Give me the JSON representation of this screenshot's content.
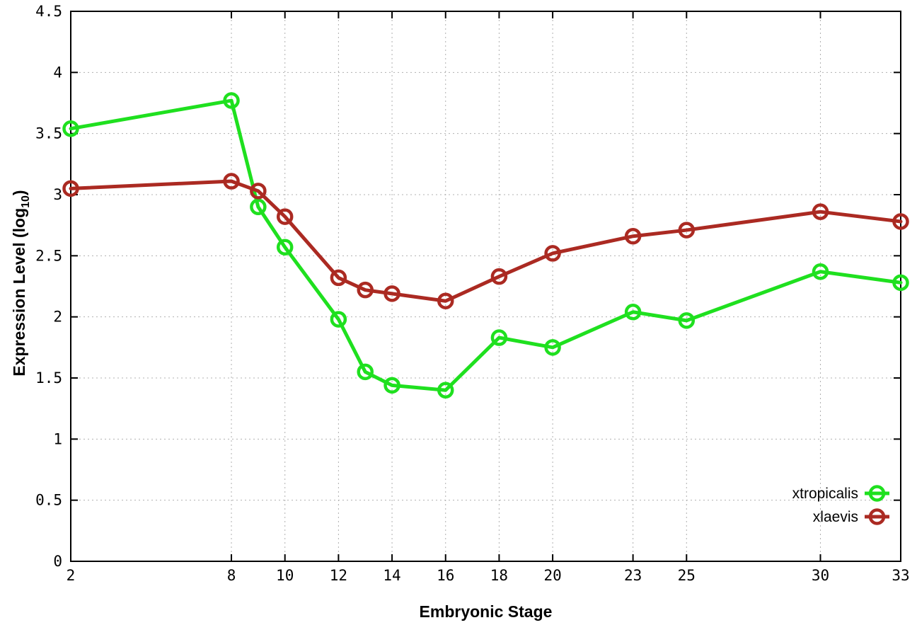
{
  "figure": {
    "background": "#ffffff",
    "text_color": "#000000",
    "grid_color": "#b0b0b0"
  },
  "chart_data": {
    "type": "line",
    "title": "",
    "xlabel": "Embryonic Stage",
    "ylabel": "Expression Level (log10)",
    "ylabel_parts": {
      "main": "Expression Level (log",
      "sub": "10",
      "end": ")"
    },
    "x": [
      2,
      8,
      9,
      10,
      12,
      13,
      14,
      16,
      18,
      20,
      23,
      25,
      30,
      33
    ],
    "series": [
      {
        "name": "xtropicalis",
        "color": "#1fe01f",
        "values": [
          3.54,
          3.77,
          2.9,
          2.57,
          1.98,
          1.55,
          1.44,
          1.4,
          1.83,
          1.75,
          2.04,
          1.97,
          2.37,
          2.28
        ]
      },
      {
        "name": "xlaevis",
        "color": "#ab2a22",
        "values": [
          3.05,
          3.11,
          3.03,
          2.82,
          2.32,
          2.22,
          2.19,
          2.13,
          2.33,
          2.52,
          2.66,
          2.71,
          2.86,
          2.78
        ]
      }
    ],
    "xlim": [
      2,
      33
    ],
    "ylim": [
      0,
      4.5
    ],
    "xticks": [
      2,
      8,
      10,
      12,
      14,
      16,
      18,
      20,
      23,
      25,
      30,
      33
    ],
    "xtick_labels": [
      "2",
      "8",
      "10",
      "12",
      "14",
      "16",
      "18",
      "20",
      "23",
      "25",
      "30",
      "33"
    ],
    "yticks": [
      0,
      0.5,
      1,
      1.5,
      2,
      2.5,
      3,
      3.5,
      4,
      4.5
    ],
    "ytick_labels": [
      "0",
      "0.5",
      "1",
      "1.5",
      "2",
      "2.5",
      "3",
      "3.5",
      "4",
      "4.5"
    ],
    "grid": true,
    "marker": "open-circle",
    "legend_position": "inside-bottom-right"
  }
}
